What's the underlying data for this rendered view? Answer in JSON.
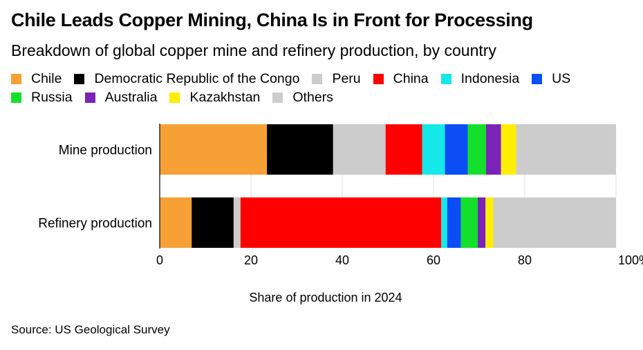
{
  "title": "Chile Leads Copper Mining, China Is in Front for Processing",
  "subtitle": "Breakdown of global copper mine and refinery production, by country",
  "source": "Source: US Geological Survey",
  "chart_data": {
    "type": "bar",
    "orientation": "horizontal",
    "stacked": true,
    "title": "Chile Leads Copper Mining, China Is in Front for Processing",
    "xlabel": "Share of production in 2024",
    "ylabel": "",
    "xlim": [
      0,
      100
    ],
    "x_ticks": [
      "0",
      "20",
      "40",
      "60",
      "80",
      "100%"
    ],
    "categories": [
      "Mine production",
      "Refinery production"
    ],
    "legend_position": "top",
    "series": [
      {
        "name": "Chile",
        "color": "#f7a035",
        "values": [
          23.5,
          7
        ]
      },
      {
        "name": "Democratic Republic of the Congo",
        "color": "#000000",
        "values": [
          14.5,
          9.2
        ]
      },
      {
        "name": "Peru",
        "color": "#cccccc",
        "values": [
          11.5,
          1.5
        ]
      },
      {
        "name": "China",
        "color": "#ff0000",
        "values": [
          8,
          44
        ]
      },
      {
        "name": "Indonesia",
        "color": "#14e8e8",
        "values": [
          5,
          1.3
        ]
      },
      {
        "name": "US",
        "color": "#0b4ef5",
        "values": [
          5,
          3
        ]
      },
      {
        "name": "Russia",
        "color": "#12e02b",
        "values": [
          4,
          3.7
        ]
      },
      {
        "name": "Australia",
        "color": "#7b22b8",
        "values": [
          3.3,
          1.7
        ]
      },
      {
        "name": "Kazakhstan",
        "color": "#ffee00",
        "values": [
          3.3,
          1.7
        ]
      },
      {
        "name": "Others",
        "color": "#cccccc",
        "values": [
          21.9,
          26.9
        ]
      }
    ]
  }
}
